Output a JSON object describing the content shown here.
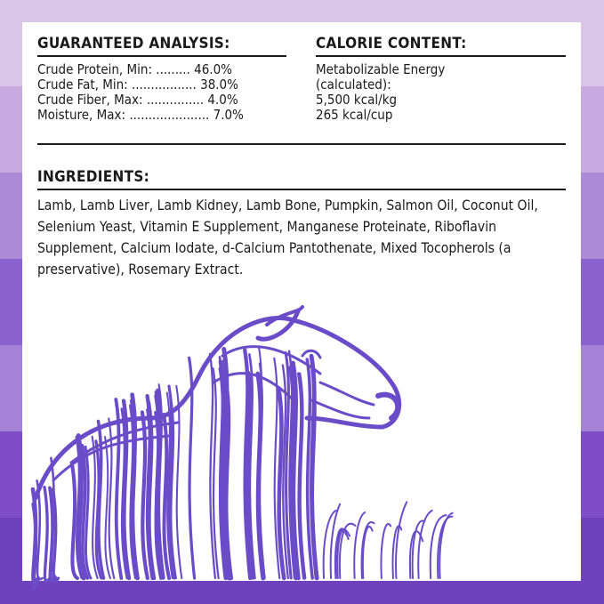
{
  "colors": {
    "bands": [
      "#d9c5e7",
      "#c7aae0",
      "#ab8ad8",
      "#8b62cd",
      "#a483d7",
      "#7e4dc7",
      "#6f41bf"
    ],
    "lamb": "#6a4cc8"
  },
  "analysis": {
    "title": "GUARANTEED ANALYSIS:",
    "rows": [
      "Crude Protein, Min: ......... 46.0%",
      "Crude Fat, Min: ................. 38.0%",
      "Crude Fiber, Max: ............... 4.0%",
      "Moisture, Max: ..................... 7.0%"
    ]
  },
  "calorie": {
    "title": "CALORIE CONTENT:",
    "rows": [
      "Metabolizable Energy",
      "(calculated):",
      "5,500 kcal/kg",
      "265 kcal/cup"
    ]
  },
  "ingredients": {
    "title": "INGREDIENTS:",
    "text": "Lamb, Lamb Liver, Lamb Kidney, Lamb Bone, Pumpkin, Salmon Oil, Coconut Oil, Selenium Yeast, Vitamin E Supplement, Manganese Proteinate, Riboflavin Supplement, Calcium Iodate, d-Calcium Pantothenate, Mixed Tocopherols (a preservative), Rosemary Extract."
  },
  "illustration": {
    "icon": "lamb-illustration"
  }
}
